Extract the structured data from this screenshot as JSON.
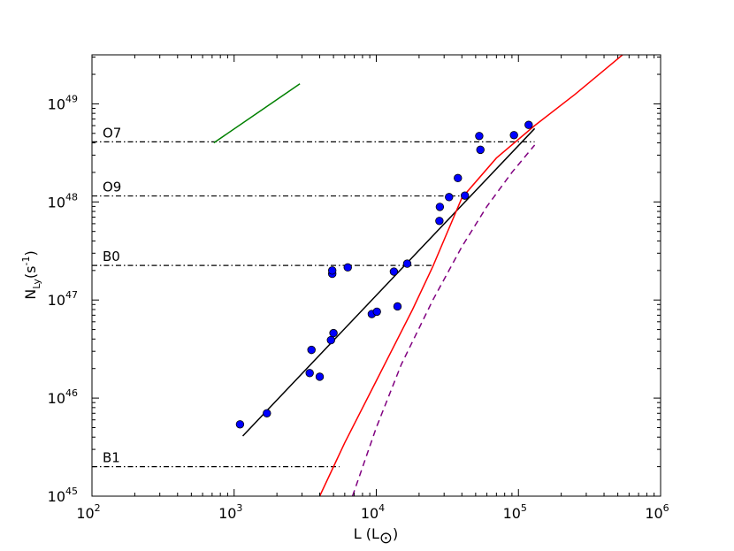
{
  "chart_data": {
    "type": "scatter",
    "xscale": "log",
    "yscale": "log",
    "xlim": [
      100,
      1000000
    ],
    "ylim": [
      1e+45,
      3.16e+49
    ],
    "grid": false,
    "x_ticks": [
      {
        "base": "10",
        "exp": "2",
        "value": 100
      },
      {
        "base": "10",
        "exp": "3",
        "value": 1000
      },
      {
        "base": "10",
        "exp": "4",
        "value": 10000
      },
      {
        "base": "10",
        "exp": "5",
        "value": 100000
      },
      {
        "base": "10",
        "exp": "6",
        "value": 1000000
      }
    ],
    "y_ticks": [
      {
        "base": "10",
        "exp": "45",
        "value": 1e+45
      },
      {
        "base": "10",
        "exp": "46",
        "value": 1e+46
      },
      {
        "base": "10",
        "exp": "47",
        "value": 1e+47
      },
      {
        "base": "10",
        "exp": "48",
        "value": 1e+48
      },
      {
        "base": "10",
        "exp": "49",
        "value": 1e+49
      }
    ],
    "xlabel": {
      "main": "L (L",
      "sub": "⊙",
      "close": ")"
    },
    "ylabel": {
      "main": "N",
      "sub": "Ly",
      "mid": "(s",
      "sup": "-1",
      "close": ")"
    },
    "points": [
      [
        1100,
        5.4e+45
      ],
      [
        1700,
        7e+45
      ],
      [
        3400,
        1.8e+46
      ],
      [
        4000,
        1.65e+46
      ],
      [
        3500,
        3.1e+46
      ],
      [
        4800,
        3.9e+46
      ],
      [
        5000,
        4.6e+46
      ],
      [
        4900,
        1.85e+47
      ],
      [
        4900,
        2e+47
      ],
      [
        6300,
        2.15e+47
      ],
      [
        9300,
        7.2e+46
      ],
      [
        10100,
        7.6e+46
      ],
      [
        13300,
        1.95e+47
      ],
      [
        14100,
        8.6e+46
      ],
      [
        16500,
        2.35e+47
      ],
      [
        27800,
        6.4e+47
      ],
      [
        28000,
        8.9e+47
      ],
      [
        32500,
        1.12e+48
      ],
      [
        37500,
        1.75e+48
      ],
      [
        42000,
        1.16e+48
      ],
      [
        53000,
        4.7e+48
      ],
      [
        54000,
        3.4e+48
      ],
      [
        93000,
        4.8e+48
      ],
      [
        118000,
        6.1e+48
      ]
    ],
    "series": [
      {
        "color": "#000000",
        "style": "solid",
        "x": [
          1150,
          130000
        ],
        "y": [
          4.1e+45,
          5.6e+48
        ]
      },
      {
        "color": "#ff0000",
        "style": "solid",
        "x": [
          4000,
          6000,
          10000,
          18000,
          25000,
          40000,
          70000,
          130000,
          250000,
          400000,
          560000
        ],
        "y": [
          1e+45,
          3.5e+45,
          1.5e+46,
          8e+46,
          2.2e+47,
          1.1e+48,
          2.8e+48,
          6e+48,
          1.25e+49,
          2.2e+49,
          3.3e+49
        ]
      },
      {
        "color": "#800080",
        "style": "dashed",
        "x": [
          6800,
          10000,
          15000,
          25000,
          40000,
          60000,
          90000,
          130000
        ],
        "y": [
          1e+45,
          5e+45,
          2.2e+46,
          1e+47,
          3.5e+47,
          9e+47,
          2e+48,
          3.8e+48
        ]
      },
      {
        "color": "#008000",
        "style": "solid",
        "x": [
          720,
          2900
        ],
        "y": [
          4e+48,
          1.6e+49
        ]
      }
    ],
    "reference_lines": [
      {
        "label": "O7",
        "y": 4.1e+48,
        "x_end": 130000
      },
      {
        "label": "O9",
        "y": 1.15e+48,
        "x_end": 42000
      },
      {
        "label": "B0",
        "y": 2.25e+47,
        "x_end": 25000
      },
      {
        "label": "B1",
        "y": 2e+45,
        "x_end": 5500
      }
    ]
  }
}
